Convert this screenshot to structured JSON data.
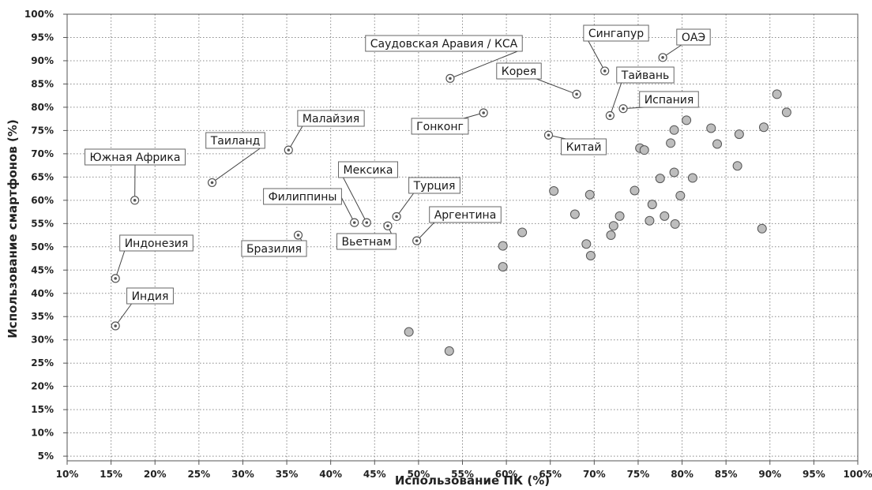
{
  "chart_data": {
    "type": "scatter",
    "xlabel": "Использование ПК (%)",
    "ylabel": "Использование смартфонов (%)",
    "xlim": [
      10,
      100
    ],
    "ylim": [
      4,
      100
    ],
    "xticks": [
      "10%",
      "15%",
      "20%",
      "25%",
      "30%",
      "35%",
      "40%",
      "45%",
      "50%",
      "55%",
      "60%",
      "65%",
      "70%",
      "75%",
      "80%",
      "85%",
      "90%",
      "95%",
      "100%"
    ],
    "yticks": [
      "5%",
      "10%",
      "15%",
      "20%",
      "25%",
      "30%",
      "35%",
      "40%",
      "45%",
      "50%",
      "55%",
      "60%",
      "65%",
      "70%",
      "75%",
      "80%",
      "85%",
      "90%",
      "95%",
      "100%"
    ],
    "grid": true,
    "labeled_points": [
      {
        "label": "Южная Африка",
        "x": 17.7,
        "y": 60
      },
      {
        "label": "Индонезия",
        "x": 15.5,
        "y": 43.2
      },
      {
        "label": "Индия",
        "x": 15.5,
        "y": 33
      },
      {
        "label": "Таиланд",
        "x": 26.5,
        "y": 63.8
      },
      {
        "label": "Малайзия",
        "x": 35.2,
        "y": 70.8
      },
      {
        "label": "Бразилия",
        "x": 36.3,
        "y": 52.5
      },
      {
        "label": "Филиппины",
        "x": 42.7,
        "y": 55.2
      },
      {
        "label": "Мексика",
        "x": 44.1,
        "y": 55.2
      },
      {
        "label": "Вьетнам",
        "x": 46.5,
        "y": 54.5
      },
      {
        "label": "Турция",
        "x": 47.5,
        "y": 56.5
      },
      {
        "label": "Аргентина",
        "x": 49.8,
        "y": 51.3
      },
      {
        "label": "Саудовская Аравия / КСА",
        "x": 53.6,
        "y": 86.2
      },
      {
        "label": "Гонконг",
        "x": 57.4,
        "y": 78.8
      },
      {
        "label": "Китай",
        "x": 64.8,
        "y": 74
      },
      {
        "label": "Корея",
        "x": 68,
        "y": 82.8
      },
      {
        "label": "Сингапур",
        "x": 71.2,
        "y": 87.8
      },
      {
        "label": "Тайвань",
        "x": 71.8,
        "y": 78.2
      },
      {
        "label": "Испания",
        "x": 73.3,
        "y": 79.7
      },
      {
        "label": "ОАЭ",
        "x": 77.8,
        "y": 90.7
      }
    ],
    "points": [
      {
        "x": 48.9,
        "y": 31.7
      },
      {
        "x": 53.5,
        "y": 27.6
      },
      {
        "x": 59.6,
        "y": 50.2
      },
      {
        "x": 59.6,
        "y": 45.7
      },
      {
        "x": 61.8,
        "y": 53.1
      },
      {
        "x": 65.4,
        "y": 62
      },
      {
        "x": 67.8,
        "y": 57
      },
      {
        "x": 69.1,
        "y": 50.6
      },
      {
        "x": 69.5,
        "y": 61.2
      },
      {
        "x": 69.6,
        "y": 48.1
      },
      {
        "x": 71.9,
        "y": 52.5
      },
      {
        "x": 72.2,
        "y": 54.5
      },
      {
        "x": 72.9,
        "y": 56.6
      },
      {
        "x": 74.6,
        "y": 62.1
      },
      {
        "x": 75.2,
        "y": 71.2
      },
      {
        "x": 75.7,
        "y": 70.8
      },
      {
        "x": 76.3,
        "y": 55.6
      },
      {
        "x": 76.6,
        "y": 59.1
      },
      {
        "x": 77.5,
        "y": 64.7
      },
      {
        "x": 78,
        "y": 56.6
      },
      {
        "x": 78.7,
        "y": 72.3
      },
      {
        "x": 79.1,
        "y": 66
      },
      {
        "x": 79.1,
        "y": 75.1
      },
      {
        "x": 79.2,
        "y": 54.9
      },
      {
        "x": 79.8,
        "y": 61
      },
      {
        "x": 80.5,
        "y": 77.2
      },
      {
        "x": 81.2,
        "y": 64.8
      },
      {
        "x": 83.3,
        "y": 75.5
      },
      {
        "x": 84,
        "y": 72.1
      },
      {
        "x": 86.3,
        "y": 67.4
      },
      {
        "x": 86.5,
        "y": 74.2
      },
      {
        "x": 89.1,
        "y": 53.9
      },
      {
        "x": 89.3,
        "y": 75.7
      },
      {
        "x": 90.8,
        "y": 82.8
      },
      {
        "x": 91.9,
        "y": 78.9
      }
    ]
  }
}
